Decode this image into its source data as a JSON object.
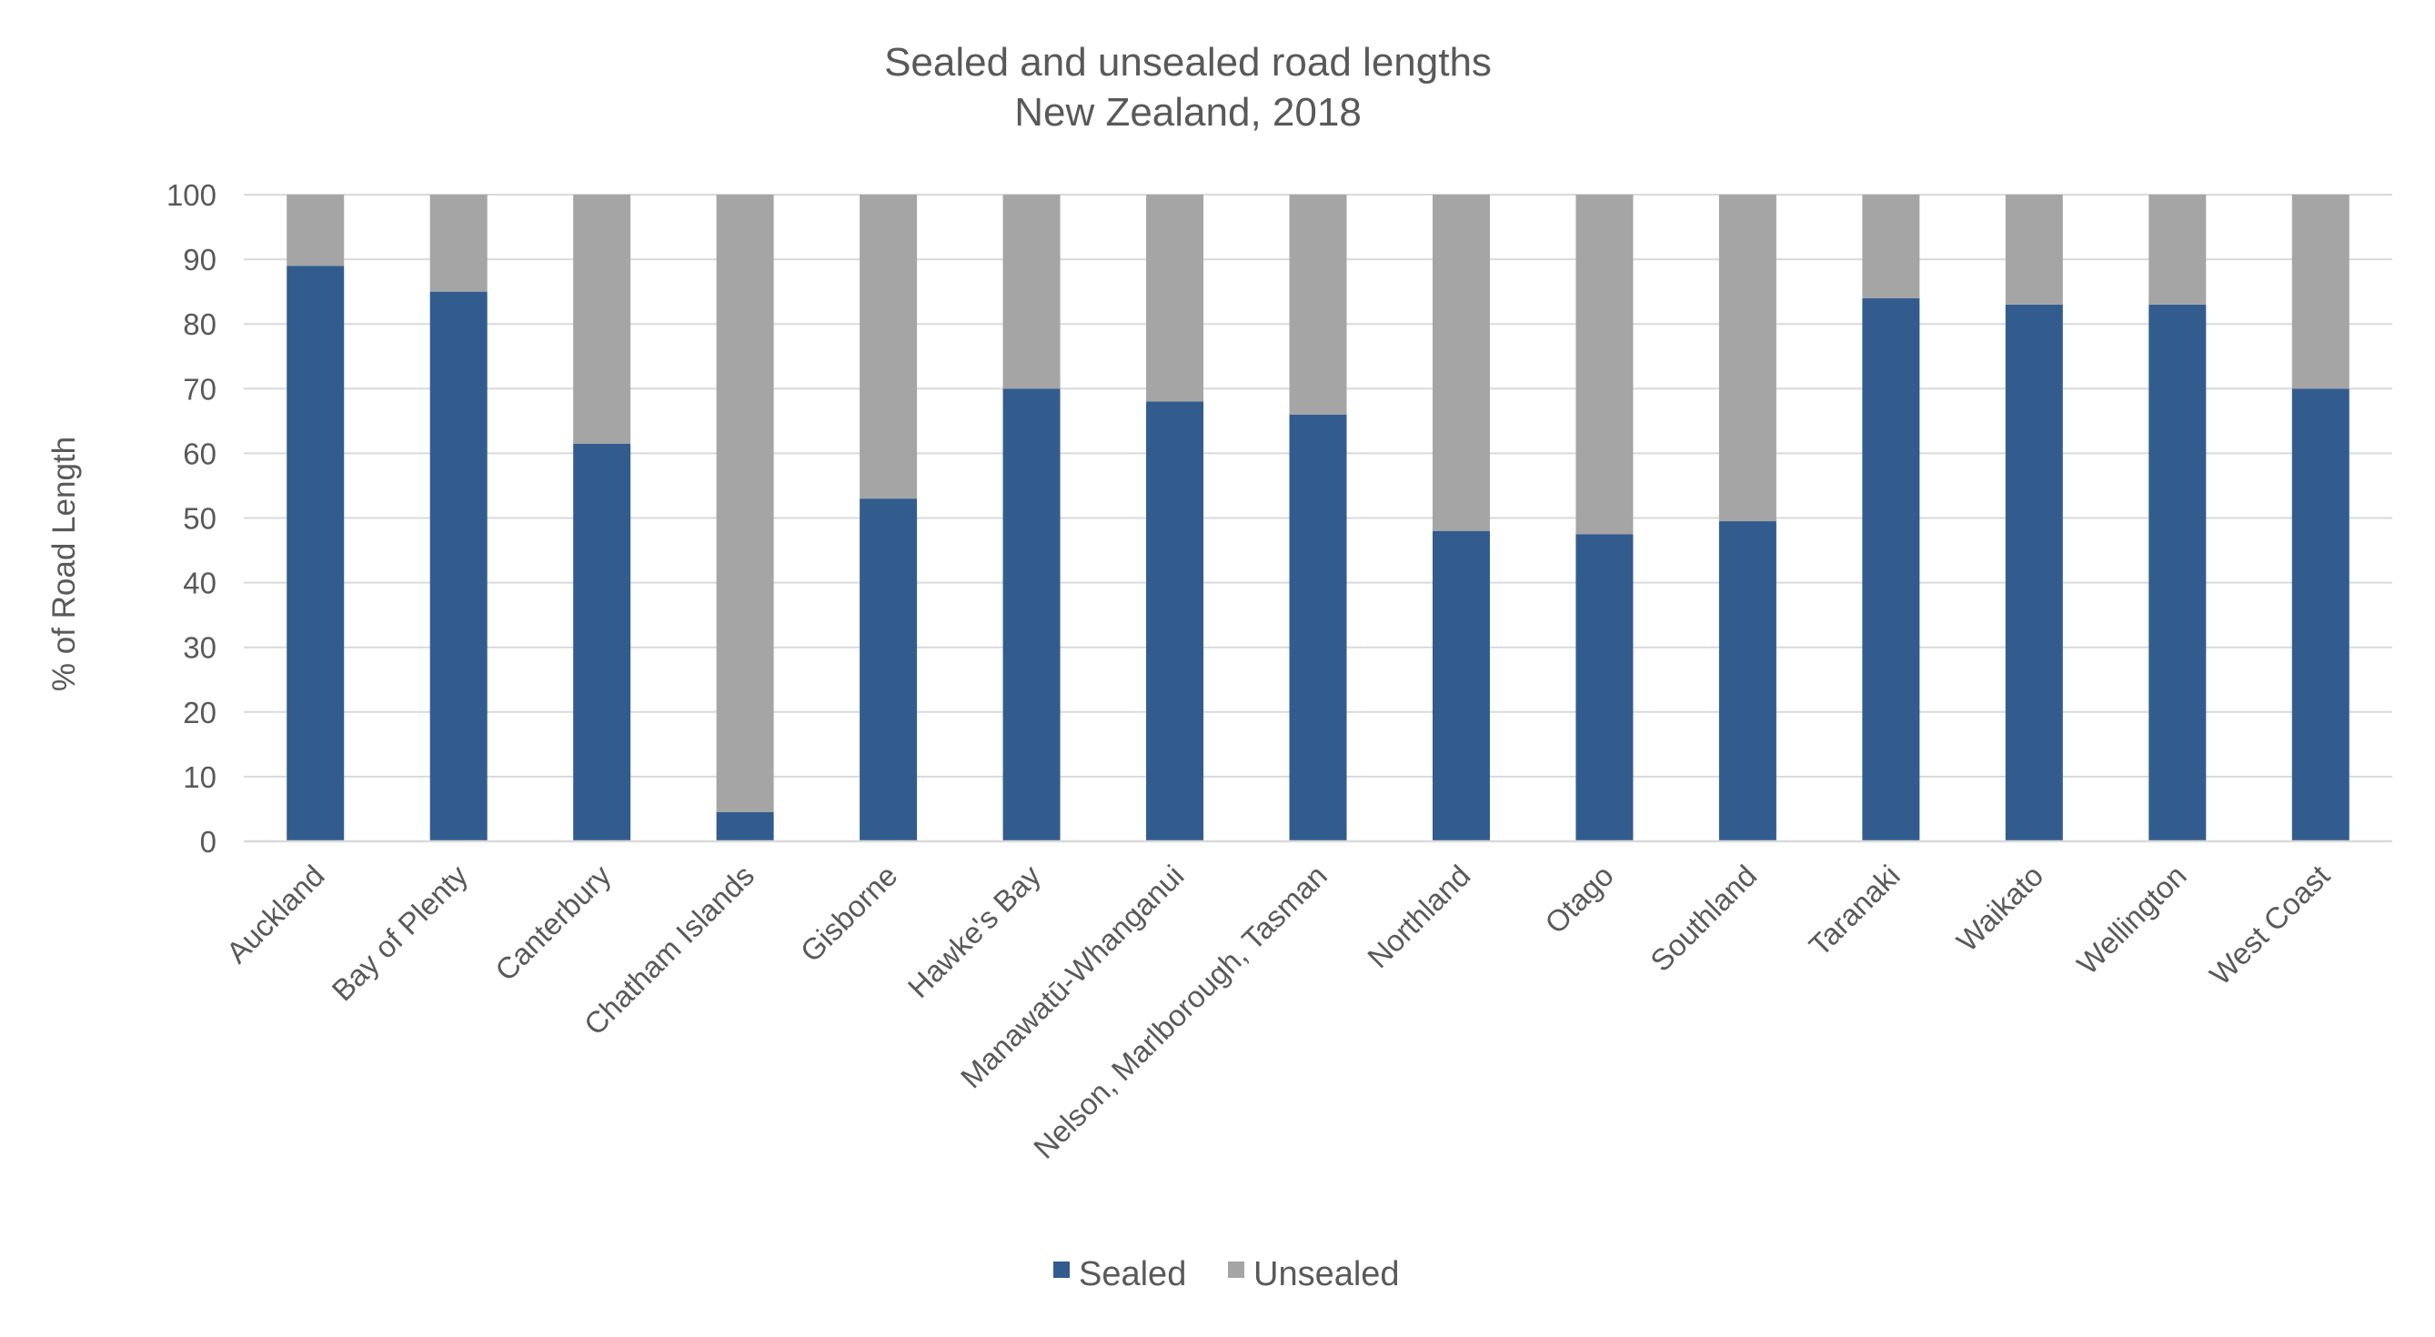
{
  "chart_data": {
    "type": "bar",
    "stacked": true,
    "title": "Sealed and unsealed road lengths",
    "subtitle": "New Zealand, 2018",
    "xlabel": "",
    "ylabel": "% of Road Length",
    "ylim": [
      0,
      100
    ],
    "yticks": [
      0,
      10,
      20,
      30,
      40,
      50,
      60,
      70,
      80,
      90,
      100
    ],
    "grid": true,
    "legend_position": "bottom",
    "categories": [
      "Auckland",
      "Bay of Plenty",
      "Canterbury",
      "Chatham Islands",
      "Gisborne",
      "Hawke's Bay",
      "Manawatū-Whanganui",
      "Nelson, Marlborough, Tasman",
      "Northland",
      "Otago",
      "Southland",
      "Taranaki",
      "Waikato",
      "Wellington",
      "West Coast"
    ],
    "series": [
      {
        "name": "Sealed",
        "color": "#335c8e",
        "values": [
          89,
          85,
          61.5,
          4.5,
          53,
          70,
          68,
          66,
          48,
          47.5,
          49.5,
          84,
          83,
          83,
          70
        ]
      },
      {
        "name": "Unsealed",
        "color": "#a5a5a5",
        "values": [
          11,
          15,
          38.5,
          95.5,
          47,
          30,
          32,
          34,
          52,
          52.5,
          50.5,
          16,
          17,
          17,
          30
        ]
      }
    ]
  }
}
